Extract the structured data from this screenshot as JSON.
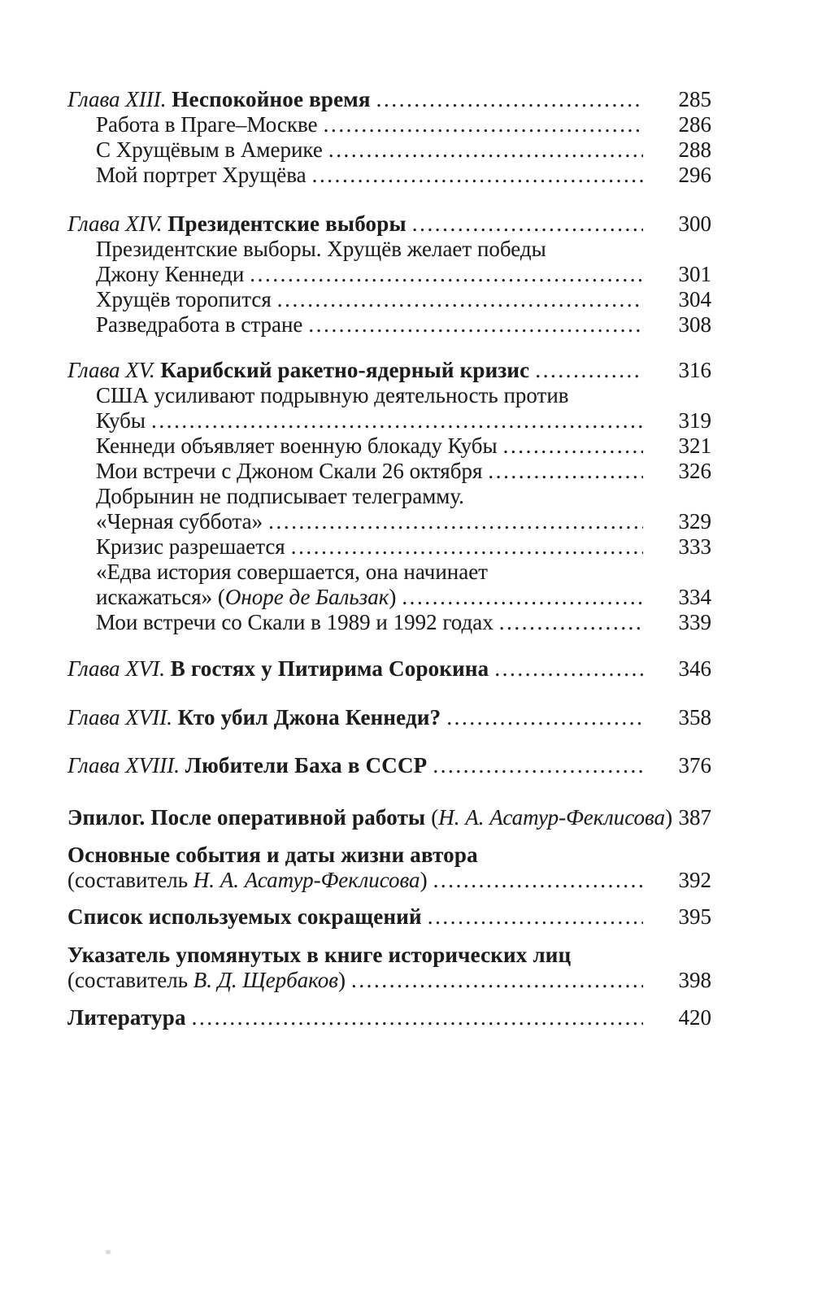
{
  "page_style": {
    "background": "#ffffff",
    "text_color": "#1c1c1c"
  },
  "toc": {
    "lines": [
      {
        "gap": 0,
        "indent": "chapter",
        "segments": [
          {
            "t": "Глава XIII. ",
            "s": "i"
          },
          {
            "t": "Неспокойное время",
            "s": "b"
          }
        ],
        "dots": true,
        "page": "285"
      },
      {
        "gap": 0,
        "indent": "sub",
        "segments": [
          {
            "t": "Работа в Праге–Москве",
            "s": "r"
          }
        ],
        "dots": true,
        "page": "286"
      },
      {
        "gap": 0,
        "indent": "sub",
        "segments": [
          {
            "t": "С Хрущёвым в Америке",
            "s": "r"
          }
        ],
        "dots": true,
        "page": "288"
      },
      {
        "gap": 0,
        "indent": "sub",
        "segments": [
          {
            "t": "Мой портрет Хрущёва",
            "s": "r"
          }
        ],
        "dots": true,
        "page": "296"
      },
      {
        "gap": 29,
        "indent": "chapter",
        "segments": [
          {
            "t": "Глава XIV. ",
            "s": "i"
          },
          {
            "t": "Президентские выборы",
            "s": "b"
          }
        ],
        "dots": true,
        "page": "300"
      },
      {
        "gap": 0,
        "indent": "sub",
        "segments": [
          {
            "t": "Президентские выборы. Хрущёв желает победы",
            "s": "r"
          }
        ],
        "dots": false,
        "page": ""
      },
      {
        "gap": 0,
        "indent": "sub",
        "segments": [
          {
            "t": "Джону Кеннеди",
            "s": "r"
          }
        ],
        "dots": true,
        "page": "301"
      },
      {
        "gap": 0,
        "indent": "sub",
        "segments": [
          {
            "t": "Хрущёв торопится",
            "s": "r"
          }
        ],
        "dots": true,
        "page": "304"
      },
      {
        "gap": 0,
        "indent": "sub",
        "segments": [
          {
            "t": "Разведработа в стране",
            "s": "r"
          }
        ],
        "dots": true,
        "page": "308"
      },
      {
        "gap": 25,
        "indent": "chapter",
        "segments": [
          {
            "t": "Глава XV. ",
            "s": "i"
          },
          {
            "t": "Карибский ракетно-ядерный кризис",
            "s": "b"
          }
        ],
        "dots": true,
        "page": "316"
      },
      {
        "gap": 0,
        "indent": "sub",
        "segments": [
          {
            "t": "США усиливают подрывную деятельность против",
            "s": "r"
          }
        ],
        "dots": false,
        "page": ""
      },
      {
        "gap": 0,
        "indent": "sub",
        "segments": [
          {
            "t": "Кубы",
            "s": "r"
          }
        ],
        "dots": true,
        "page": "319"
      },
      {
        "gap": 0,
        "indent": "sub",
        "segments": [
          {
            "t": "Кеннеди объявляет военную блокаду Кубы",
            "s": "r"
          }
        ],
        "dots": true,
        "page": "321"
      },
      {
        "gap": 0,
        "indent": "sub",
        "segments": [
          {
            "t": "Мои встречи с Джоном Скали 26 октября",
            "s": "r"
          }
        ],
        "dots": true,
        "page": "326"
      },
      {
        "gap": 0,
        "indent": "sub",
        "segments": [
          {
            "t": "Добрынин не подписывает телеграмму.",
            "s": "r"
          }
        ],
        "dots": false,
        "page": ""
      },
      {
        "gap": 0,
        "indent": "sub",
        "segments": [
          {
            "t": "«Черная суббота»",
            "s": "r"
          }
        ],
        "dots": true,
        "page": "329"
      },
      {
        "gap": 0,
        "indent": "sub",
        "segments": [
          {
            "t": "Кризис разрешается",
            "s": "r"
          }
        ],
        "dots": true,
        "page": "333"
      },
      {
        "gap": 0,
        "indent": "sub",
        "segments": [
          {
            "t": "«Едва история совершается, она начинает",
            "s": "r"
          }
        ],
        "dots": false,
        "page": ""
      },
      {
        "gap": 0,
        "indent": "sub",
        "segments": [
          {
            "t": "искажаться» (",
            "s": "r"
          },
          {
            "t": "Оноре де Бальзак",
            "s": "i"
          },
          {
            "t": ")",
            "s": "r"
          }
        ],
        "dots": true,
        "page": "334"
      },
      {
        "gap": 0,
        "indent": "sub",
        "segments": [
          {
            "t": "Мои встречи со Скали в 1989 и 1992 годах",
            "s": "r"
          }
        ],
        "dots": true,
        "page": "339"
      },
      {
        "gap": 26,
        "indent": "chapter",
        "segments": [
          {
            "t": "Глава XVI. ",
            "s": "i"
          },
          {
            "t": "В гостях у Питирима Сорокина",
            "s": "b"
          }
        ],
        "dots": true,
        "page": "346"
      },
      {
        "gap": 29,
        "indent": "chapter",
        "segments": [
          {
            "t": "Глава XVII. ",
            "s": "i"
          },
          {
            "t": "Кто убил Джона Кеннеди?",
            "s": "b"
          }
        ],
        "dots": true,
        "page": "358"
      },
      {
        "gap": 28,
        "indent": "chapter",
        "segments": [
          {
            "t": "Глава XVIII. ",
            "s": "i"
          },
          {
            "t": "Любители Баха в СССР",
            "s": "b"
          }
        ],
        "dots": true,
        "page": "376"
      },
      {
        "gap": 33,
        "indent": "chapter",
        "segments": [
          {
            "t": "Эпилог. После оперативной работы ",
            "s": "b"
          },
          {
            "t": "(",
            "s": "r"
          },
          {
            "t": "Н. А. Асатур-Феклисова",
            "s": "i"
          },
          {
            "t": ")",
            "s": "r"
          }
        ],
        "dots": true,
        "page": "387"
      },
      {
        "gap": 15,
        "indent": "chapter",
        "segments": [
          {
            "t": "Основные события и даты жизни автора",
            "s": "b"
          }
        ],
        "dots": false,
        "page": ""
      },
      {
        "gap": 0,
        "indent": "chapter",
        "segments": [
          {
            "t": "(составитель ",
            "s": "r"
          },
          {
            "t": "Н. А. Асатур-Феклисова",
            "s": "i"
          },
          {
            "t": ")",
            "s": "r"
          }
        ],
        "dots": true,
        "page": "392"
      },
      {
        "gap": 14,
        "indent": "chapter",
        "segments": [
          {
            "t": "Список используемых сокращений",
            "s": "b"
          }
        ],
        "dots": true,
        "page": "395"
      },
      {
        "gap": 16,
        "indent": "chapter",
        "segments": [
          {
            "t": "Указатель упомянутых в книге исторических лиц",
            "s": "b"
          }
        ],
        "dots": false,
        "page": ""
      },
      {
        "gap": 0,
        "indent": "chapter",
        "segments": [
          {
            "t": "(составитель ",
            "s": "r"
          },
          {
            "t": "В. Д. Щербаков",
            "s": "i"
          },
          {
            "t": ")",
            "s": "r"
          }
        ],
        "dots": true,
        "page": "398"
      },
      {
        "gap": 15,
        "indent": "chapter",
        "segments": [
          {
            "t": "Литература",
            "s": "b"
          }
        ],
        "dots": true,
        "page": "420"
      }
    ]
  }
}
